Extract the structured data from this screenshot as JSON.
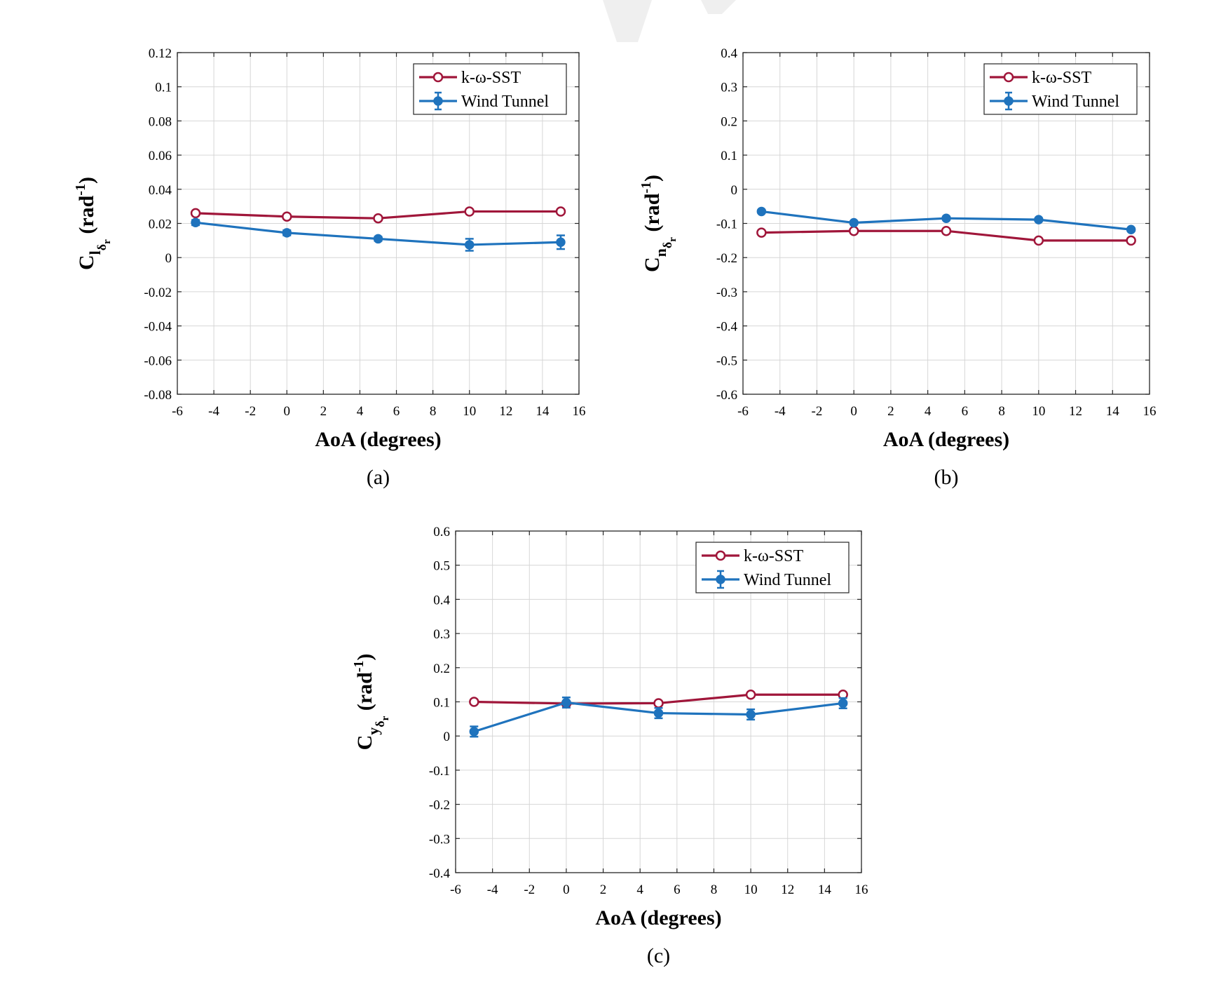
{
  "watermark_color": "#efefef",
  "chart_data": [
    {
      "type": "line",
      "caption": "(a)",
      "xlabel": "AoA (degrees)",
      "ylabel": {
        "main": "C",
        "sub": "l",
        "subsub": "δ",
        "subsubsub": "r",
        "unit_prefix": "(rad",
        "unit_exp": "-1",
        "unit_suffix": ")"
      },
      "xlim": [
        -6,
        16
      ],
      "ylim": [
        -0.08,
        0.12
      ],
      "xticks": [
        -6,
        -4,
        -2,
        0,
        2,
        4,
        6,
        8,
        10,
        12,
        14,
        16
      ],
      "xtick_labels": [
        "-6",
        "-4",
        "-2",
        "0",
        "2",
        "4",
        "6",
        "8",
        "10",
        "12",
        "14",
        "16"
      ],
      "yticks": [
        -0.08,
        -0.06,
        -0.04,
        -0.02,
        0,
        0.02,
        0.04,
        0.06,
        0.08,
        0.1,
        0.12
      ],
      "ytick_labels": [
        "-0.08",
        "-0.06",
        "-0.04",
        "-0.02",
        "0",
        "0.02",
        "0.04",
        "0.06",
        "0.08",
        "0.1",
        "0.12"
      ],
      "grid": true,
      "legend_position": "top-right",
      "x": [
        -5,
        0,
        5,
        10,
        15
      ],
      "series": [
        {
          "name": "k-ω-SST",
          "color": "#a0163a",
          "marker": "open-circle",
          "values": [
            0.026,
            0.024,
            0.023,
            0.027,
            0.027
          ]
        },
        {
          "name": "Wind Tunnel",
          "color": "#1f73bd",
          "marker": "filled-circle",
          "values": [
            0.0205,
            0.0145,
            0.011,
            0.0075,
            0.009
          ],
          "errors": [
            0.0015,
            0.0015,
            0.0012,
            0.0035,
            0.004
          ]
        }
      ]
    },
    {
      "type": "line",
      "caption": "(b)",
      "xlabel": "AoA (degrees)",
      "ylabel": {
        "main": "C",
        "sub": "n",
        "subsub": "δ",
        "subsubsub": "r",
        "unit_prefix": "(rad",
        "unit_exp": "-1",
        "unit_suffix": ")"
      },
      "xlim": [
        -6,
        16
      ],
      "ylim": [
        -0.6,
        0.4
      ],
      "xticks": [
        -6,
        -4,
        -2,
        0,
        2,
        4,
        6,
        8,
        10,
        12,
        14,
        16
      ],
      "xtick_labels": [
        "-6",
        "-4",
        "-2",
        "0",
        "2",
        "4",
        "6",
        "8",
        "10",
        "12",
        "14",
        "16"
      ],
      "yticks": [
        -0.6,
        -0.5,
        -0.4,
        -0.3,
        -0.2,
        -0.1,
        0,
        0.1,
        0.2,
        0.3,
        0.4
      ],
      "ytick_labels": [
        "-0.6",
        "-0.5",
        "-0.4",
        "-0.3",
        "-0.2",
        "-0.1",
        "0",
        "0.1",
        "0.2",
        "0.3",
        "0.4"
      ],
      "grid": true,
      "legend_position": "top-right",
      "x": [
        -5,
        0,
        5,
        10,
        15
      ],
      "series": [
        {
          "name": "k-ω-SST",
          "color": "#a0163a",
          "marker": "open-circle",
          "values": [
            -0.127,
            -0.122,
            -0.122,
            -0.15,
            -0.15
          ]
        },
        {
          "name": "Wind Tunnel",
          "color": "#1f73bd",
          "marker": "filled-circle",
          "values": [
            -0.065,
            -0.098,
            -0.085,
            -0.089,
            -0.118
          ],
          "errors": [
            0.004,
            0.004,
            0.004,
            0.004,
            0.004
          ]
        }
      ]
    },
    {
      "type": "line",
      "caption": "(c)",
      "xlabel": "AoA (degrees)",
      "ylabel": {
        "main": "C",
        "sub": "y",
        "subsub": "δ",
        "subsubsub": "r",
        "unit_prefix": "(rad",
        "unit_exp": "-1",
        "unit_suffix": ")"
      },
      "xlim": [
        -6,
        16
      ],
      "ylim": [
        -0.4,
        0.6
      ],
      "xticks": [
        -6,
        -4,
        -2,
        0,
        2,
        4,
        6,
        8,
        10,
        12,
        14,
        16
      ],
      "xtick_labels": [
        "-6",
        "-4",
        "-2",
        "0",
        "2",
        "4",
        "6",
        "8",
        "10",
        "12",
        "14",
        "16"
      ],
      "yticks": [
        -0.4,
        -0.3,
        -0.2,
        -0.1,
        0,
        0.1,
        0.2,
        0.3,
        0.4,
        0.5,
        0.6
      ],
      "ytick_labels": [
        "-0.4",
        "-0.3",
        "-0.2",
        "-0.1",
        "0",
        "0.1",
        "0.2",
        "0.3",
        "0.4",
        "0.5",
        "0.6"
      ],
      "grid": true,
      "legend_position": "top-right",
      "x": [
        -5,
        0,
        5,
        10,
        15
      ],
      "series": [
        {
          "name": "k-ω-SST",
          "color": "#a0163a",
          "marker": "open-circle",
          "values": [
            0.1,
            0.095,
            0.096,
            0.121,
            0.121
          ]
        },
        {
          "name": "Wind Tunnel",
          "color": "#1f73bd",
          "marker": "filled-circle",
          "values": [
            0.013,
            0.098,
            0.067,
            0.063,
            0.096
          ],
          "errors": [
            0.015,
            0.015,
            0.015,
            0.015,
            0.015
          ]
        }
      ]
    }
  ]
}
